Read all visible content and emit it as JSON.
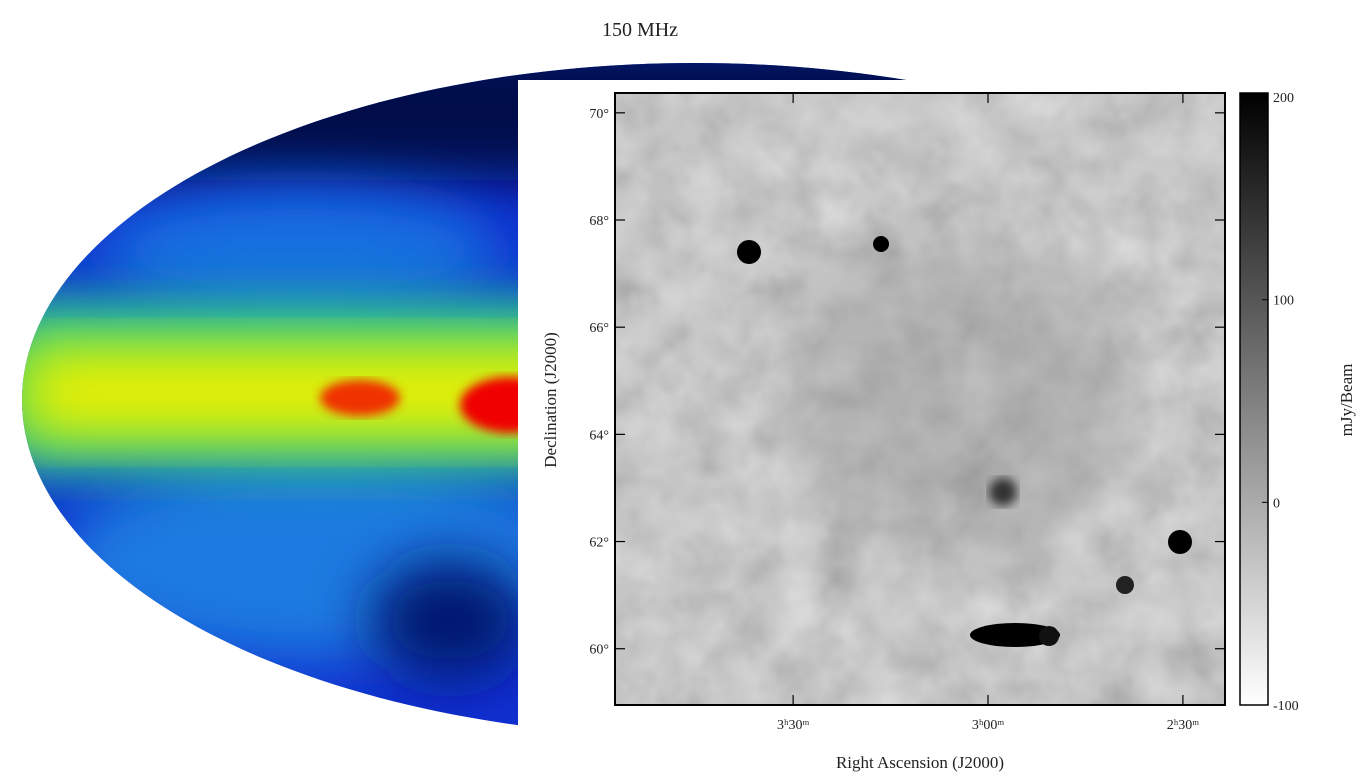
{
  "title": "150 MHz",
  "panel": {
    "y_axis": {
      "label": "Declination (J2000)",
      "lim": [
        58.95,
        70.37
      ],
      "ticks": [
        {
          "value": 70,
          "label": "70°"
        },
        {
          "value": 68,
          "label": "68°"
        },
        {
          "value": 66,
          "label": "66°"
        },
        {
          "value": 64,
          "label": "64°"
        },
        {
          "value": 62,
          "label": "62°"
        },
        {
          "value": 60,
          "label": "60°"
        }
      ]
    },
    "x_axis": {
      "label": "Right Ascension (J2000)",
      "lim": [
        3.957,
        2.392
      ],
      "ticks": [
        {
          "value": 3.5,
          "label": "3ʰ30ᵐ"
        },
        {
          "value": 3.0,
          "label": "3ʰ00ᵐ"
        },
        {
          "value": 2.5,
          "label": "2ʰ30ᵐ"
        }
      ]
    },
    "colorbar": {
      "label": "mJy/Beam",
      "lim": [
        -100,
        202
      ],
      "ticks": [
        200,
        100,
        0,
        -100
      ]
    }
  }
}
